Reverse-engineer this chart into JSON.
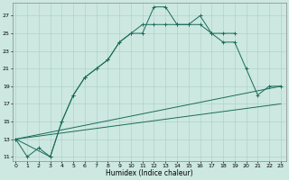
{
  "xlabel": "Humidex (Indice chaleur)",
  "bg_color": "#cce8e0",
  "line_color": "#1a6b5a",
  "grid_color": "#aacccc",
  "yticks": [
    11,
    13,
    15,
    17,
    19,
    21,
    23,
    25,
    27
  ],
  "xticks": [
    0,
    1,
    2,
    3,
    4,
    5,
    6,
    7,
    8,
    9,
    10,
    11,
    12,
    13,
    14,
    15,
    16,
    17,
    18,
    19,
    20,
    21,
    22,
    23
  ],
  "line1_x": [
    0,
    1,
    2,
    3,
    4,
    5,
    6,
    7,
    8,
    9,
    10,
    11,
    12,
    13,
    14,
    15,
    16,
    17,
    18,
    19
  ],
  "line1_y": [
    13,
    11,
    12,
    11,
    15,
    18,
    20,
    21,
    22,
    24,
    25,
    25,
    28,
    28,
    26,
    26,
    27,
    25,
    25,
    25
  ],
  "line2_x": [
    0,
    3,
    4,
    5,
    6,
    7,
    8,
    9,
    10,
    11,
    12,
    13,
    14,
    15,
    16,
    17,
    18,
    19,
    20,
    21,
    22,
    23
  ],
  "line2_y": [
    13,
    11,
    15,
    18,
    20,
    21,
    22,
    24,
    25,
    26,
    26,
    26,
    26,
    26,
    26,
    25,
    24,
    24,
    21,
    18,
    19,
    19
  ],
  "line3_x": [
    0,
    23
  ],
  "line3_y": [
    13,
    19
  ],
  "line4_x": [
    0,
    23
  ],
  "line4_y": [
    13,
    17
  ],
  "xlim_min": -0.3,
  "xlim_max": 23.5,
  "ylim_min": 10.5,
  "ylim_max": 28.5
}
